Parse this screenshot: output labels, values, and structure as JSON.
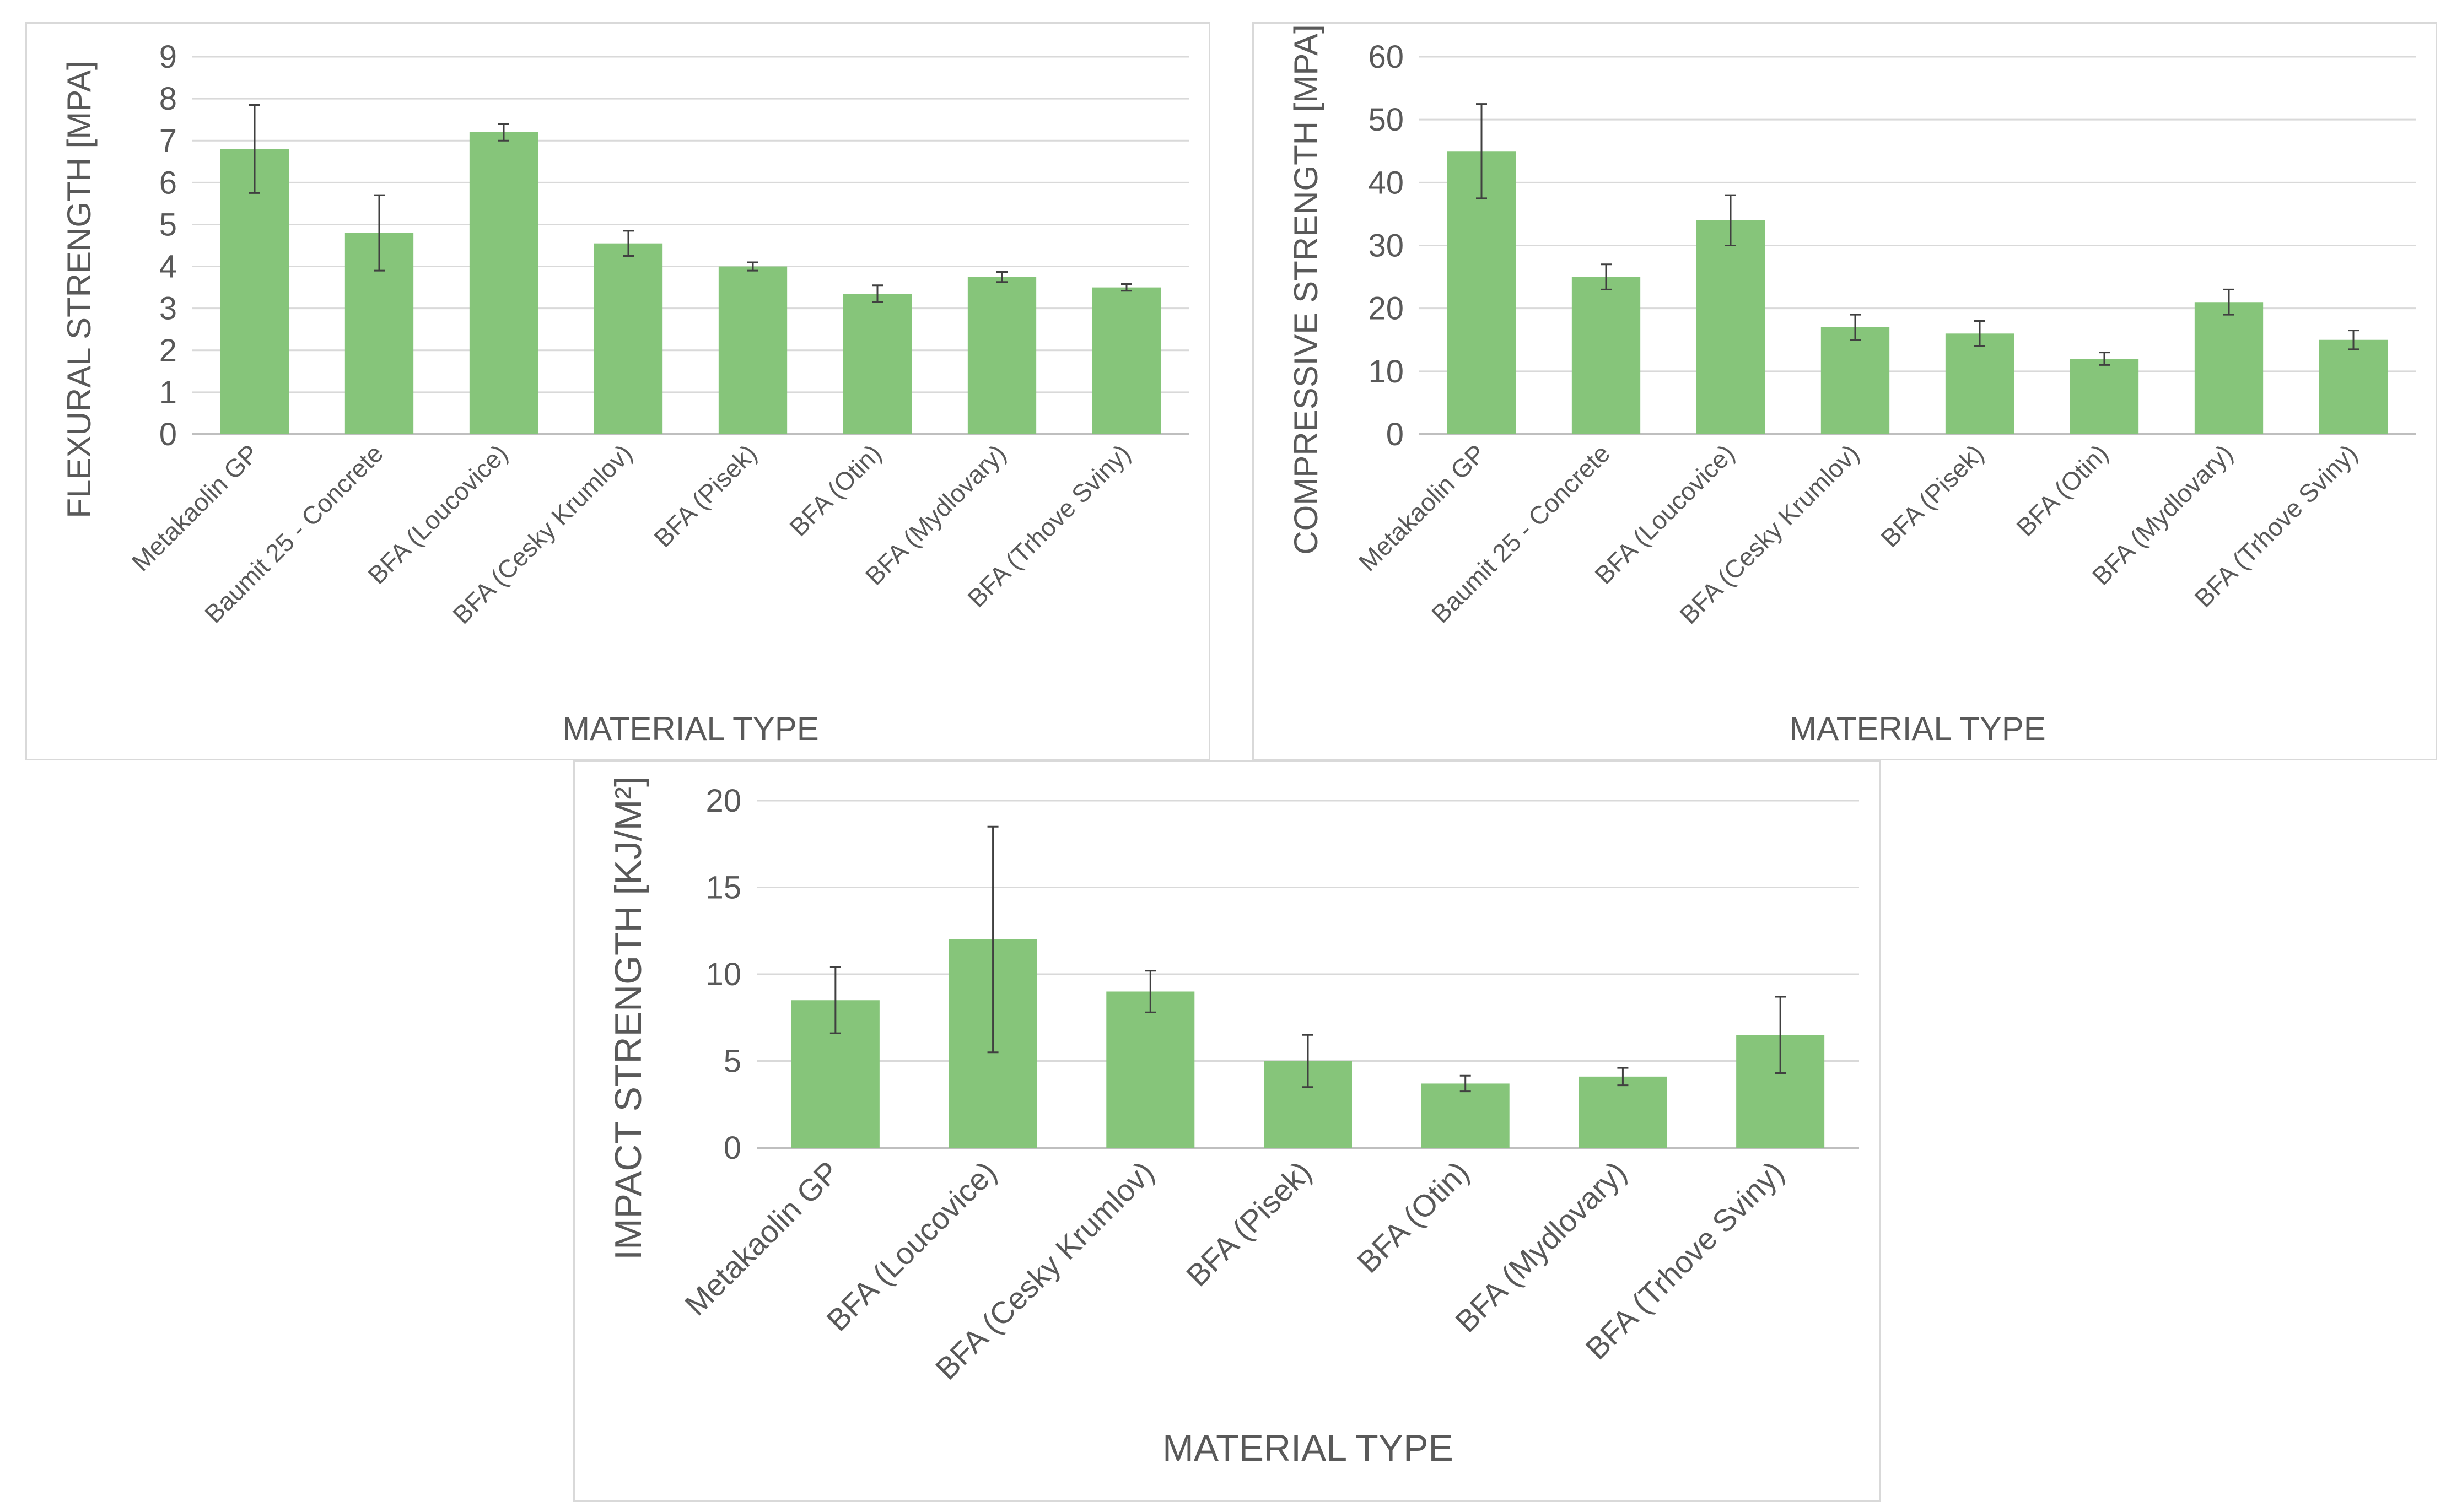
{
  "chart_data": [
    {
      "id": "flexural",
      "type": "bar",
      "ylabel": "FLEXURAL STRENGTH [MPA]",
      "xlabel": "MATERIAL TYPE",
      "ylim": [
        0,
        9
      ],
      "yticks": [
        0,
        1,
        2,
        3,
        4,
        5,
        6,
        7,
        8,
        9
      ],
      "grid": true,
      "bar_color": "#86c57a",
      "categories": [
        "Metakaolin GP",
        "Baumit 25 - Concrete",
        "BFA (Loucovice)",
        "BFA (Cesky Krumlov)",
        "BFA (Pisek)",
        "BFA (Otin)",
        "BFA (Mydlovary)",
        "BFA (Trhove Sviny)"
      ],
      "values": [
        6.8,
        4.8,
        7.2,
        4.55,
        4.0,
        3.35,
        3.75,
        3.5
      ],
      "errors": [
        1.05,
        0.9,
        0.2,
        0.3,
        0.1,
        0.2,
        0.12,
        0.08
      ]
    },
    {
      "id": "compressive",
      "type": "bar",
      "ylabel": "COMPRESSIVE STRENGTH [MPA]",
      "xlabel": "MATERIAL TYPE",
      "ylim": [
        0,
        60
      ],
      "yticks": [
        0,
        10,
        20,
        30,
        40,
        50,
        60
      ],
      "grid": true,
      "bar_color": "#86c57a",
      "categories": [
        "Metakaolin GP",
        "Baumit 25 - Concrete",
        "BFA (Loucovice)",
        "BFA (Cesky Krumlov)",
        "BFA (Pisek)",
        "BFA (Otin)",
        "BFA (Mydlovary)",
        "BFA (Trhove Sviny)"
      ],
      "values": [
        45,
        25,
        34,
        17,
        16,
        12,
        21,
        15
      ],
      "errors": [
        7.5,
        2,
        4,
        2,
        2,
        1,
        2,
        1.5
      ]
    },
    {
      "id": "impact",
      "type": "bar",
      "ylabel": "IMPACT STRENGTH [KJ/M²]",
      "xlabel": "MATERIAL TYPE",
      "ylim": [
        0,
        20
      ],
      "yticks": [
        0,
        5,
        10,
        15,
        20
      ],
      "grid": true,
      "bar_color": "#86c57a",
      "categories": [
        "Metakaolin GP",
        "BFA (Loucovice)",
        "BFA (Cesky Krumlov)",
        "BFA (Pisek)",
        "BFA (Otin)",
        "BFA (Mydlovary)",
        "BFA (Trhove Sviny)"
      ],
      "values": [
        8.5,
        12,
        9,
        5,
        3.7,
        4.1,
        6.5
      ],
      "errors": [
        1.9,
        6.5,
        1.2,
        1.5,
        0.45,
        0.5,
        2.2
      ]
    }
  ]
}
